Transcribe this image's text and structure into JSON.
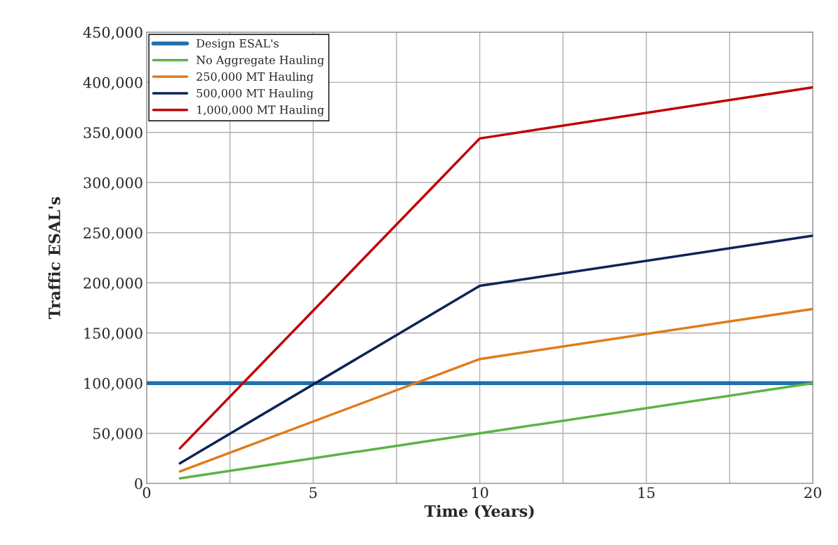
{
  "chart_data": {
    "type": "line",
    "xlabel": "Time (Years)",
    "ylabel": "Traffic ESAL's",
    "xlim": [
      0,
      20
    ],
    "xticks": [
      {
        "value": 0,
        "label": "0"
      },
      {
        "value": 2.5,
        "label": null
      },
      {
        "value": 5,
        "label": "5"
      },
      {
        "value": 7.5,
        "label": null
      },
      {
        "value": 10,
        "label": "10"
      },
      {
        "value": 12.5,
        "label": null
      },
      {
        "value": 15,
        "label": "15"
      },
      {
        "value": 17.5,
        "label": null
      },
      {
        "value": 20,
        "label": "20"
      }
    ],
    "ylim": [
      0,
      450000
    ],
    "yticks": [
      {
        "value": 0,
        "label": "0"
      },
      {
        "value": 50000,
        "label": "50,000"
      },
      {
        "value": 100000,
        "label": "100,000"
      },
      {
        "value": 150000,
        "label": "150,000"
      },
      {
        "value": 200000,
        "label": "200,000"
      },
      {
        "value": 250000,
        "label": "250,000"
      },
      {
        "value": 300000,
        "label": "300,000"
      },
      {
        "value": 350000,
        "label": "350,000"
      },
      {
        "value": 400000,
        "label": "400,000"
      },
      {
        "value": 450000,
        "label": "450,000"
      }
    ],
    "grid": true,
    "legend": "top left",
    "marker": "none",
    "line_style": "solid",
    "series": [
      {
        "name": "Design ESAL's",
        "color": "#1f6fad",
        "x": [
          0,
          20
        ],
        "values": [
          100000,
          100000
        ]
      },
      {
        "name": "No Aggregate Hauling",
        "color": "#5db344",
        "x": [
          1,
          10,
          20
        ],
        "values": [
          5000,
          50000,
          100000
        ]
      },
      {
        "name": "250,000 MT Hauling",
        "color": "#e07b1a",
        "x": [
          1,
          10,
          20
        ],
        "values": [
          12000,
          124000,
          174000
        ]
      },
      {
        "name": "500,000 MT Hauling",
        "color": "#0d2456",
        "x": [
          1,
          10,
          20
        ],
        "values": [
          20000,
          197000,
          247000
        ]
      },
      {
        "name": "1,000,000 MT Hauling",
        "color": "#c00000",
        "x": [
          1,
          10,
          20
        ],
        "values": [
          35000,
          344000,
          395000
        ]
      }
    ]
  }
}
